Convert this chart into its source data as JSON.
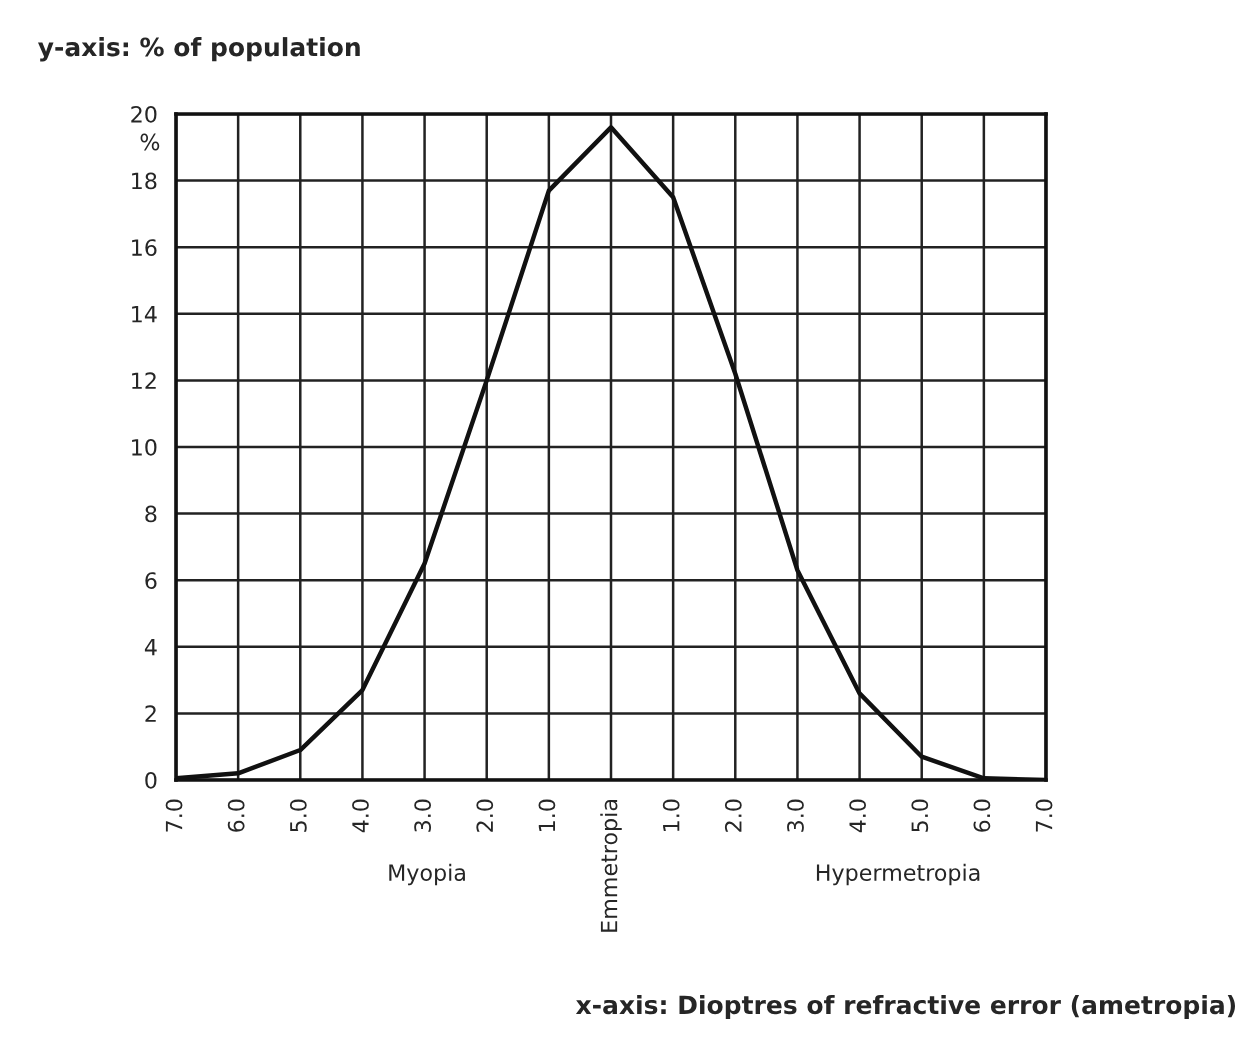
{
  "chart_data": {
    "type": "line",
    "title": "y-axis: % of population",
    "ylabel": "%",
    "categories": [
      "7.0",
      "6.0",
      "5.0",
      "4.0",
      "3.0",
      "2.0",
      "1.0",
      "Emmetropia",
      "1.0",
      "2.0",
      "3.0",
      "4.0",
      "5.0",
      "6.0",
      "7.0"
    ],
    "series": [
      {
        "color": "#111111",
        "values": [
          0.05,
          0.2,
          0.9,
          2.7,
          6.5,
          12,
          17.7,
          19.6,
          17.5,
          12.2,
          6.3,
          2.6,
          0.7,
          0.05,
          0
        ]
      }
    ],
    "ylim": [
      0,
      20
    ],
    "yticks": [
      0,
      2,
      4,
      6,
      8,
      10,
      12,
      14,
      16,
      18,
      20
    ],
    "grid": true,
    "marker": "none",
    "line_style": "solid",
    "annotations": [
      "Myopia",
      "Hypermetropia",
      "x-axis: Dioptres of refractive error (ametropia)"
    ]
  }
}
